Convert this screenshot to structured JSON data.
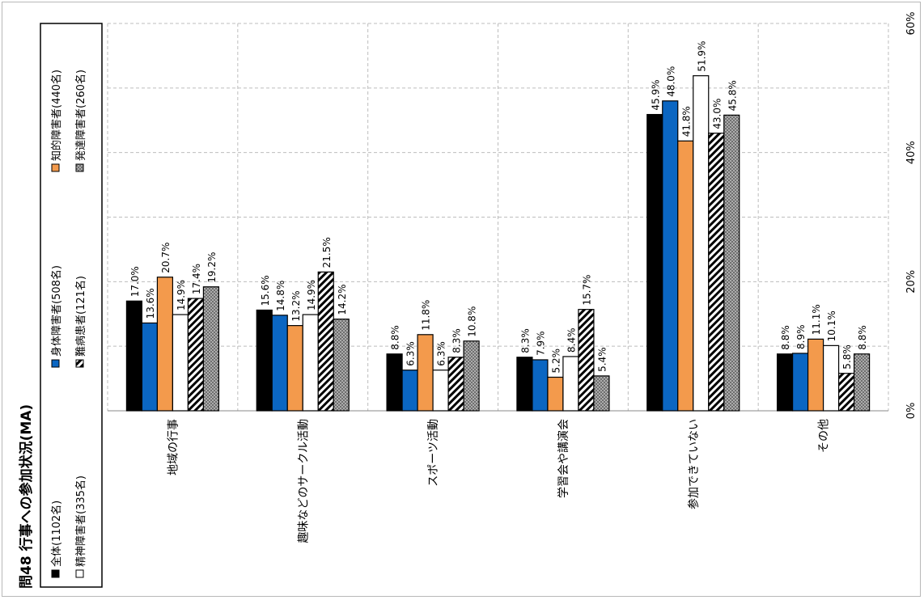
{
  "title": "問48 行事への参加状況(MA)",
  "chart_data": {
    "type": "bar",
    "orientation": "rotated-90-ccw",
    "title": "問48 行事への参加状況(MA)",
    "categories": [
      "地域の行事",
      "趣味などのサークル活動",
      "スポーツ活動",
      "学習会や講演会",
      "参加できていない",
      "その他"
    ],
    "ylim": [
      0,
      60
    ],
    "y_ticks": [
      "0%",
      "20%",
      "40%",
      "60%"
    ],
    "grid": true,
    "legend_position": "left (rotated top)",
    "series": [
      {
        "name": "全体(1102名)",
        "values": [
          17.0,
          15.6,
          8.8,
          8.3,
          45.9,
          8.8
        ],
        "labels": [
          "17.0%",
          "15.6%",
          "8.8%",
          "8.3%",
          "45.9%",
          "8.8%"
        ],
        "fill": "#000000",
        "pattern": "solid"
      },
      {
        "name": "身体障害者(508名)",
        "values": [
          13.6,
          14.8,
          6.3,
          7.9,
          48.0,
          8.9
        ],
        "labels": [
          "13.6%",
          "14.8%",
          "6.3%",
          "7.9%",
          "48.0%",
          "8.9%"
        ],
        "fill": "#0b66c2",
        "pattern": "solid"
      },
      {
        "name": "知的障害者(440名)",
        "values": [
          20.7,
          13.2,
          11.8,
          5.2,
          41.8,
          11.1
        ],
        "labels": [
          "20.7%",
          "13.2%",
          "11.8%",
          "5.2%",
          "41.8%",
          "11.1%"
        ],
        "fill": "#f39a4c",
        "pattern": "solid"
      },
      {
        "name": "精神障害者(335名)",
        "values": [
          14.9,
          14.9,
          6.3,
          8.4,
          51.9,
          10.1
        ],
        "labels": [
          "14.9%",
          "14.9%",
          "6.3%",
          "8.4%",
          "51.9%",
          "10.1%"
        ],
        "fill": "#ffffff",
        "pattern": "solid"
      },
      {
        "name": "難病患者(121名)",
        "values": [
          17.4,
          21.5,
          8.3,
          15.7,
          43.0,
          5.8
        ],
        "labels": [
          "17.4%",
          "21.5%",
          "8.3%",
          "15.7%",
          "43.0%",
          "5.8%"
        ],
        "fill": "#ffffff",
        "pattern": "hatch"
      },
      {
        "name": "発達障害者(260名)",
        "values": [
          19.2,
          14.2,
          10.8,
          5.4,
          45.8,
          8.8
        ],
        "labels": [
          "19.2%",
          "14.2%",
          "10.8%",
          "5.4%",
          "45.8%",
          "8.8%"
        ],
        "fill": "#8a8a8a",
        "pattern": "dots"
      }
    ]
  }
}
